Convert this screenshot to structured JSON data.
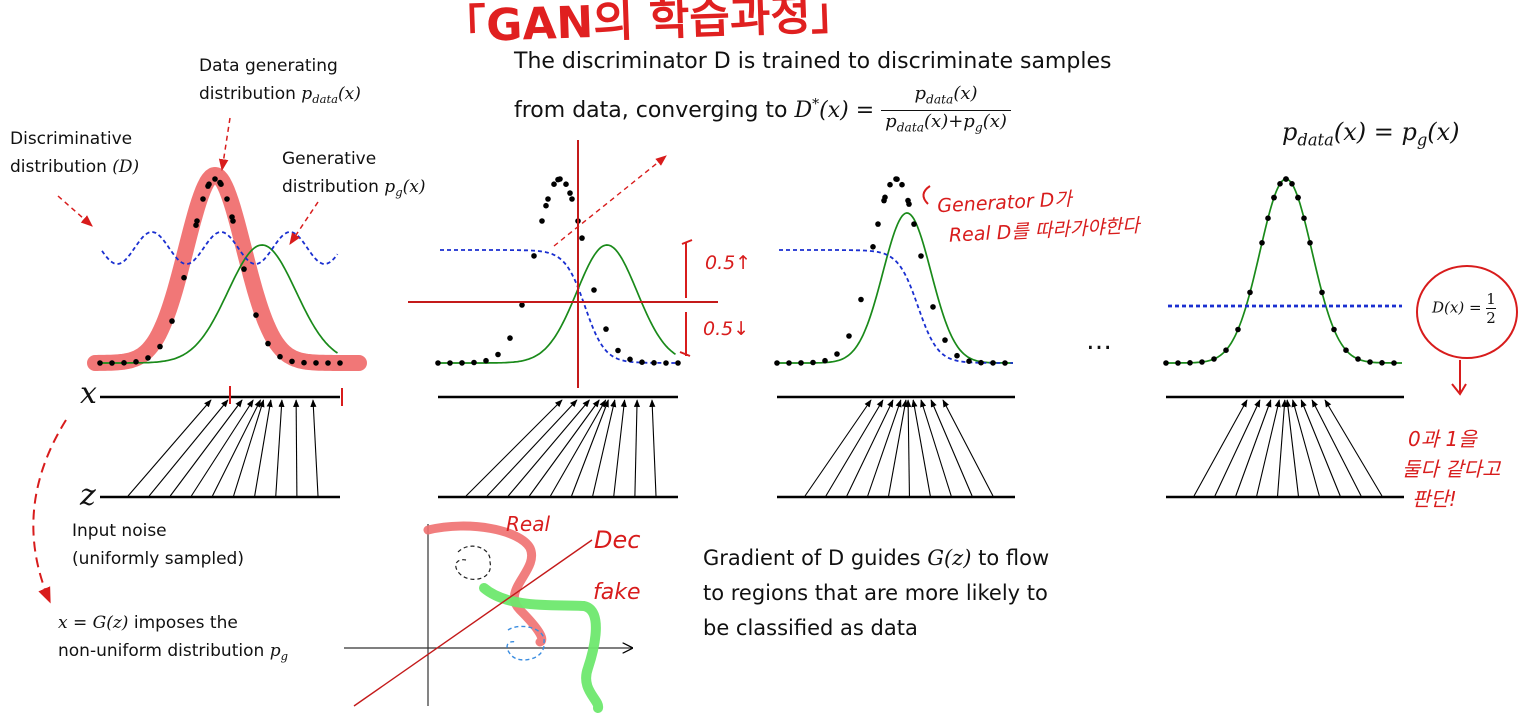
{
  "title_handwritten": "「GAN의 학습과정」",
  "labels": {
    "data_generating_line1": "Data generating",
    "data_generating_line2": "distribution",
    "discriminative_line1": "Discriminative",
    "discriminative_line2": "distribution",
    "generative_line1": "Generative",
    "generative_line2": "distribution",
    "axis_x": "x",
    "axis_z": "z",
    "input_noise_line1": "Input noise",
    "input_noise_line2": "(uniformly sampled)",
    "mapping_line1_suffix": "imposes the",
    "mapping_line2": "non-uniform distribution",
    "ellipsis": "…"
  },
  "math": {
    "p_data_x": "p_data(x)",
    "p_g_x": "p_g(x)",
    "D_paren": "(D)",
    "x_eq_Gz": "x = G(z)",
    "p_g": "p_g",
    "G_z": "G(z)",
    "equilibrium": "p_data(x) = p_g(x)",
    "D_half": "D(x) = 1/2"
  },
  "discriminator_text": {
    "line1": "The discriminator D is trained to discriminate samples",
    "line2_prefix": "from data, converging to",
    "lhs": "D*(x) =",
    "numerator": "p_data(x)",
    "denominator": "p_data(x)+p_g(x)"
  },
  "gradient_text": {
    "line1": "Gradient of D guides",
    "line1_suffix": "to flow",
    "line2": "to regions that are more likely to",
    "line3": "be classified as data"
  },
  "handwritten": {
    "generator_note_line1": "Generator D가",
    "generator_note_line2": "Real D를 따라가야한다",
    "above_half": "0.5↑",
    "below_half": "0.5↓",
    "real": "Real",
    "fake": "fake",
    "decision": "Dec",
    "conclusion_line1": "0과 1을",
    "conclusion_line2": "둘다 같다고",
    "conclusion_line3": "판단!"
  },
  "colors": {
    "data_dots": "#000000",
    "discriminator": "#1a2fd0",
    "generator": "#1a8a1a",
    "annotation_red": "#d81c1c",
    "highlight_red": "#f07070",
    "highlight_green": "#6ee86e",
    "highlight_blue": "#3b8de0"
  }
}
